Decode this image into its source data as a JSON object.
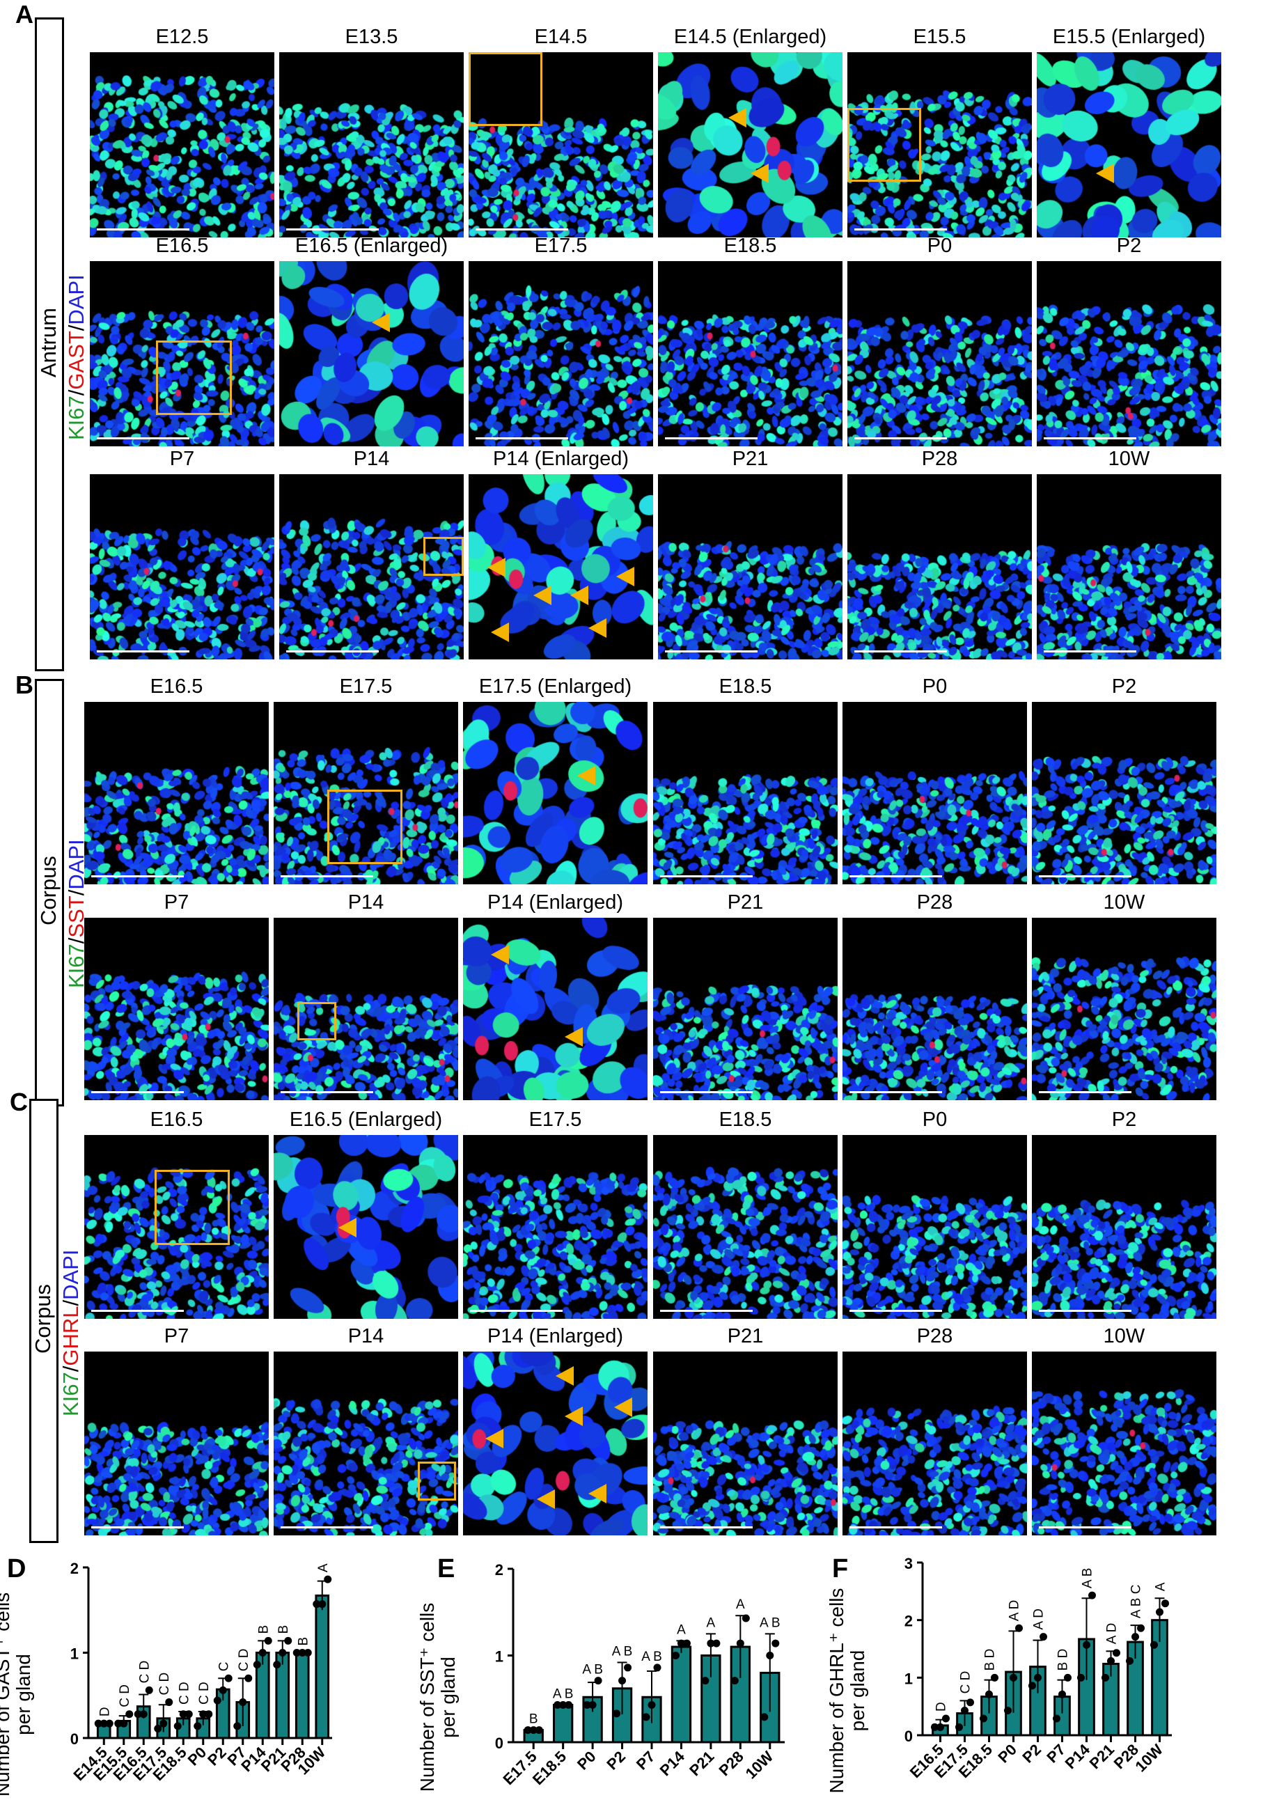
{
  "sections": [
    {
      "letter": "A",
      "region": "Antrum",
      "stain": [
        {
          "t": "KI67",
          "c": "#1a9a2a"
        },
        {
          "t": "/",
          "c": "#000"
        },
        {
          "t": "GAST",
          "c": "#e01010"
        },
        {
          "t": "/",
          "c": "#000"
        },
        {
          "t": "DAPI",
          "c": "#2020e0"
        }
      ],
      "rows": [
        [
          "E12.5",
          "E13.5",
          "E14.5",
          "E14.5 (Enlarged)",
          "E15.5",
          "E15.5 (Enlarged)"
        ],
        [
          "E16.5",
          "E16.5 (Enlarged)",
          "E17.5",
          "E18.5",
          "P0",
          "P2"
        ],
        [
          "P7",
          "P14",
          "P14 (Enlarged)",
          "P21",
          "P28",
          "10W"
        ]
      ]
    },
    {
      "letter": "B",
      "region": "Corpus",
      "stain": [
        {
          "t": "KI67",
          "c": "#1a9a2a"
        },
        {
          "t": "/",
          "c": "#000"
        },
        {
          "t": "SST",
          "c": "#e01010"
        },
        {
          "t": "/",
          "c": "#000"
        },
        {
          "t": "DAPI",
          "c": "#2020e0"
        }
      ],
      "rows": [
        [
          "E16.5",
          "E17.5",
          "E17.5 (Enlarged)",
          "E18.5",
          "P0",
          "P2"
        ],
        [
          "P7",
          "P14",
          "P14 (Enlarged)",
          "P21",
          "P28",
          "10W"
        ]
      ]
    },
    {
      "letter": "C",
      "region": "Corpus",
      "stain": [
        {
          "t": "KI67",
          "c": "#1a9a2a"
        },
        {
          "t": "/",
          "c": "#000"
        },
        {
          "t": "GHRL",
          "c": "#e01010"
        },
        {
          "t": "/",
          "c": "#000"
        },
        {
          "t": "DAPI",
          "c": "#2020e0"
        }
      ],
      "rows": [
        [
          "E16.5",
          "E16.5 (Enlarged)",
          "E17.5",
          "E18.5",
          "P0",
          "P2"
        ],
        [
          "P7",
          "P14",
          "P14 (Enlarged)",
          "P21",
          "P28",
          "10W"
        ]
      ]
    }
  ],
  "colors": {
    "bar": "#138080",
    "box": "#f0b020",
    "arrow": "#f4b400"
  },
  "chart_data": [
    {
      "letter": "D",
      "type": "bar",
      "ylabel_line1": "Number of GAST⁺ cells",
      "ylabel_line2": "per gland",
      "ylim": [
        0,
        2
      ],
      "yticks": [
        "0",
        "1",
        "2"
      ],
      "letters_rotated": true,
      "categories": [
        "E14.5",
        "E15.5",
        "E16.5",
        "E17.5",
        "E18.5",
        "P0",
        "P2",
        "P7",
        "P14",
        "P21",
        "P28",
        "10W"
      ],
      "values": [
        0.17,
        0.2,
        0.37,
        0.23,
        0.23,
        0.23,
        0.57,
        0.42,
        1.0,
        1.0,
        1.0,
        1.67
      ],
      "sd": [
        0.0,
        0.06,
        0.14,
        0.16,
        0.08,
        0.08,
        0.13,
        0.28,
        0.14,
        0.14,
        0.0,
        0.17
      ],
      "points": [
        [
          0.17,
          0.17,
          0.17
        ],
        [
          0.17,
          0.17,
          0.28
        ],
        [
          0.28,
          0.28,
          0.56
        ],
        [
          0.11,
          0.17,
          0.42
        ],
        [
          0.14,
          0.28,
          0.28
        ],
        [
          0.14,
          0.28,
          0.28
        ],
        [
          0.44,
          0.56,
          0.7
        ],
        [
          0.14,
          0.42,
          0.7
        ],
        [
          0.86,
          1.0,
          1.14
        ],
        [
          0.86,
          1.0,
          1.14
        ],
        [
          1.0,
          1.0,
          1.0
        ],
        [
          1.57,
          1.57,
          1.86
        ]
      ],
      "significance": [
        "D",
        "C D",
        "C D",
        "C D",
        "C D",
        "C D",
        "C",
        "C D",
        "B",
        "B",
        "B",
        "A"
      ]
    },
    {
      "letter": "E",
      "type": "bar",
      "ylabel_line1": "Number of SST⁺ cells",
      "ylabel_line2": "per gland",
      "ylim": [
        0,
        2
      ],
      "yticks": [
        "0",
        "1",
        "2"
      ],
      "letters_rotated": false,
      "categories": [
        "E17.5",
        "E18.5",
        "P0",
        "P2",
        "P7",
        "P14",
        "P21",
        "P28",
        "10W"
      ],
      "values": [
        0.14,
        0.43,
        0.52,
        0.62,
        0.52,
        1.1,
        1.0,
        1.1,
        0.8
      ],
      "sd": [
        0.0,
        0.0,
        0.17,
        0.3,
        0.3,
        0.07,
        0.25,
        0.36,
        0.45
      ],
      "points": [
        [
          0.14,
          0.14,
          0.14
        ],
        [
          0.43,
          0.43,
          0.43
        ],
        [
          0.43,
          0.43,
          0.71
        ],
        [
          0.33,
          0.71,
          0.86
        ],
        [
          0.29,
          0.43,
          0.86
        ],
        [
          1.0,
          1.14,
          1.14
        ],
        [
          0.71,
          1.14,
          1.14
        ],
        [
          0.71,
          1.14,
          1.43
        ],
        [
          0.29,
          1.0,
          1.14
        ]
      ],
      "significance": [
        "B",
        "A B",
        "A B",
        "A B",
        "A B",
        "A",
        "A",
        "A",
        "A B"
      ]
    },
    {
      "letter": "F",
      "type": "bar",
      "ylabel_line1": "Number of GHRL⁺ cells",
      "ylabel_line2": "per gland",
      "ylim": [
        0,
        3
      ],
      "yticks": [
        "0",
        "1",
        "2",
        "3"
      ],
      "letters_rotated": true,
      "categories": [
        "E16.5",
        "E17.5",
        "E18.5",
        "P0",
        "P2",
        "P7",
        "P14",
        "P21",
        "P28",
        "10W"
      ],
      "values": [
        0.17,
        0.38,
        0.67,
        1.1,
        1.19,
        0.67,
        1.67,
        1.24,
        1.62,
        2.0
      ],
      "sd": [
        0.1,
        0.22,
        0.29,
        0.71,
        0.46,
        0.29,
        0.71,
        0.22,
        0.29,
        0.38
      ],
      "points": [
        [
          0.14,
          0.14,
          0.29
        ],
        [
          0.14,
          0.43,
          0.57
        ],
        [
          0.29,
          0.71,
          1.0
        ],
        [
          0.43,
          1.0,
          1.86
        ],
        [
          0.86,
          1.0,
          1.71
        ],
        [
          0.29,
          0.71,
          1.0
        ],
        [
          1.0,
          1.57,
          2.43
        ],
        [
          1.0,
          1.29,
          1.43
        ],
        [
          1.29,
          1.71,
          1.86
        ],
        [
          1.57,
          2.14,
          2.29
        ]
      ],
      "significance": [
        "D",
        "C D",
        "B D",
        "A D",
        "A D",
        "B D",
        "A B",
        "A D",
        "A B C",
        "A"
      ]
    }
  ]
}
